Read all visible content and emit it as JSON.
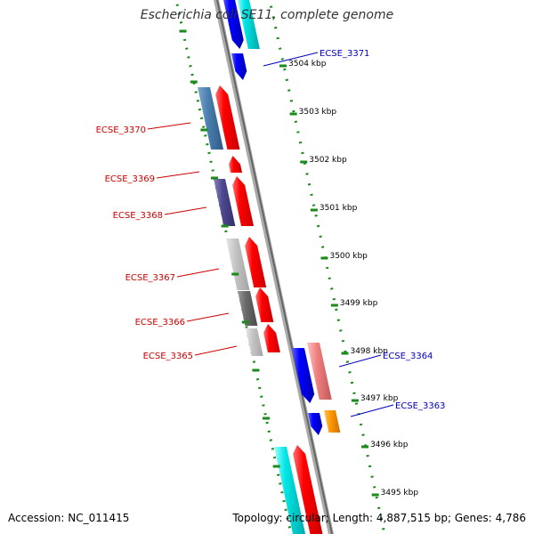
{
  "title": "Escherichia coli SE11, complete genome",
  "footer": {
    "accession": "Accession: NC_011415",
    "summary": "Topology: circular; Length: 4,887,515 bp; Genes: 4,786"
  },
  "colors": {
    "backbone": "#888888",
    "tick_dots": "#1a8a1a",
    "left_label": "#cc0000",
    "right_label": "#0000bb",
    "red_cds": "#ff0000",
    "blue_cds": "#0000ff",
    "cyan_cds": "#00e0e0"
  },
  "scale": {
    "ticks": [
      {
        "label": "3504 kbp"
      },
      {
        "label": "3503 kbp"
      },
      {
        "label": "3502 kbp"
      },
      {
        "label": "3501 kbp"
      },
      {
        "label": "3500 kbp"
      },
      {
        "label": "3499 kbp"
      },
      {
        "label": "3498 kbp"
      },
      {
        "label": "3497 kbp"
      },
      {
        "label": "3496 kbp"
      },
      {
        "label": "3495 kbp"
      }
    ]
  },
  "gene_labels_left": [
    {
      "label": "ECSE_3370"
    },
    {
      "label": "ECSE_3369"
    },
    {
      "label": "ECSE_3368"
    },
    {
      "label": "ECSE_3367"
    },
    {
      "label": "ECSE_3366"
    },
    {
      "label": "ECSE_3365"
    }
  ],
  "gene_labels_right": [
    {
      "label": "ECSE_3371"
    },
    {
      "label": "ECSE_3364"
    },
    {
      "label": "ECSE_3363"
    }
  ]
}
